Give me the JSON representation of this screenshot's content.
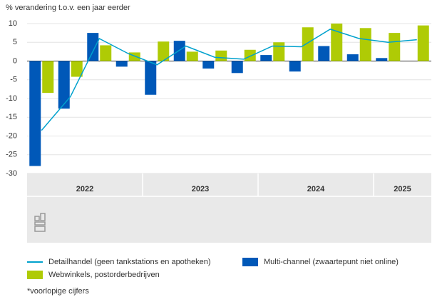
{
  "chart_data": {
    "type": "bar_line",
    "y_label": "% verandering t.o.v. een jaar eerder",
    "categories": [
      null,
      null,
      null,
      null,
      null,
      null,
      null,
      null,
      null,
      null,
      null,
      null,
      null,
      null
    ],
    "year_groups": [
      {
        "label": "2022",
        "quarters": 4
      },
      {
        "label": "2023",
        "quarters": 4
      },
      {
        "label": "2024",
        "quarters": 4
      },
      {
        "label": "2025",
        "quarters": 2
      }
    ],
    "series": [
      {
        "name": "Detailhandel (geen tankstations en apotheken)",
        "color": "#00a1cd",
        "kind": "line",
        "values": [
          -18.5,
          -9.5,
          6,
          2,
          -1,
          4,
          1,
          0.5,
          4,
          3.8,
          8.5,
          6,
          5,
          5.7
        ]
      },
      {
        "name": "Multi-channel (zwaartepunt niet online)",
        "color": "#0058b8",
        "kind": "bar",
        "values": [
          -28,
          -12.7,
          7.5,
          -1.5,
          -9,
          5.4,
          -2,
          -3.2,
          1.6,
          -2.8,
          4,
          1.8,
          0.8,
          null
        ]
      },
      {
        "name": "Webwinkels, postorderbedrijven",
        "color": "#afcb05",
        "kind": "bar",
        "values": [
          -8.5,
          -4.2,
          4.2,
          2.3,
          5.2,
          2.5,
          2.8,
          3,
          5,
          9,
          10,
          8.8,
          7.5,
          9.5
        ]
      }
    ],
    "ylim": [
      -30,
      10
    ],
    "yticks": [
      -30,
      -25,
      -20,
      -15,
      -10,
      -5,
      0,
      5,
      10
    ],
    "grid": true,
    "footnote": "*voorlopige cijfers"
  }
}
